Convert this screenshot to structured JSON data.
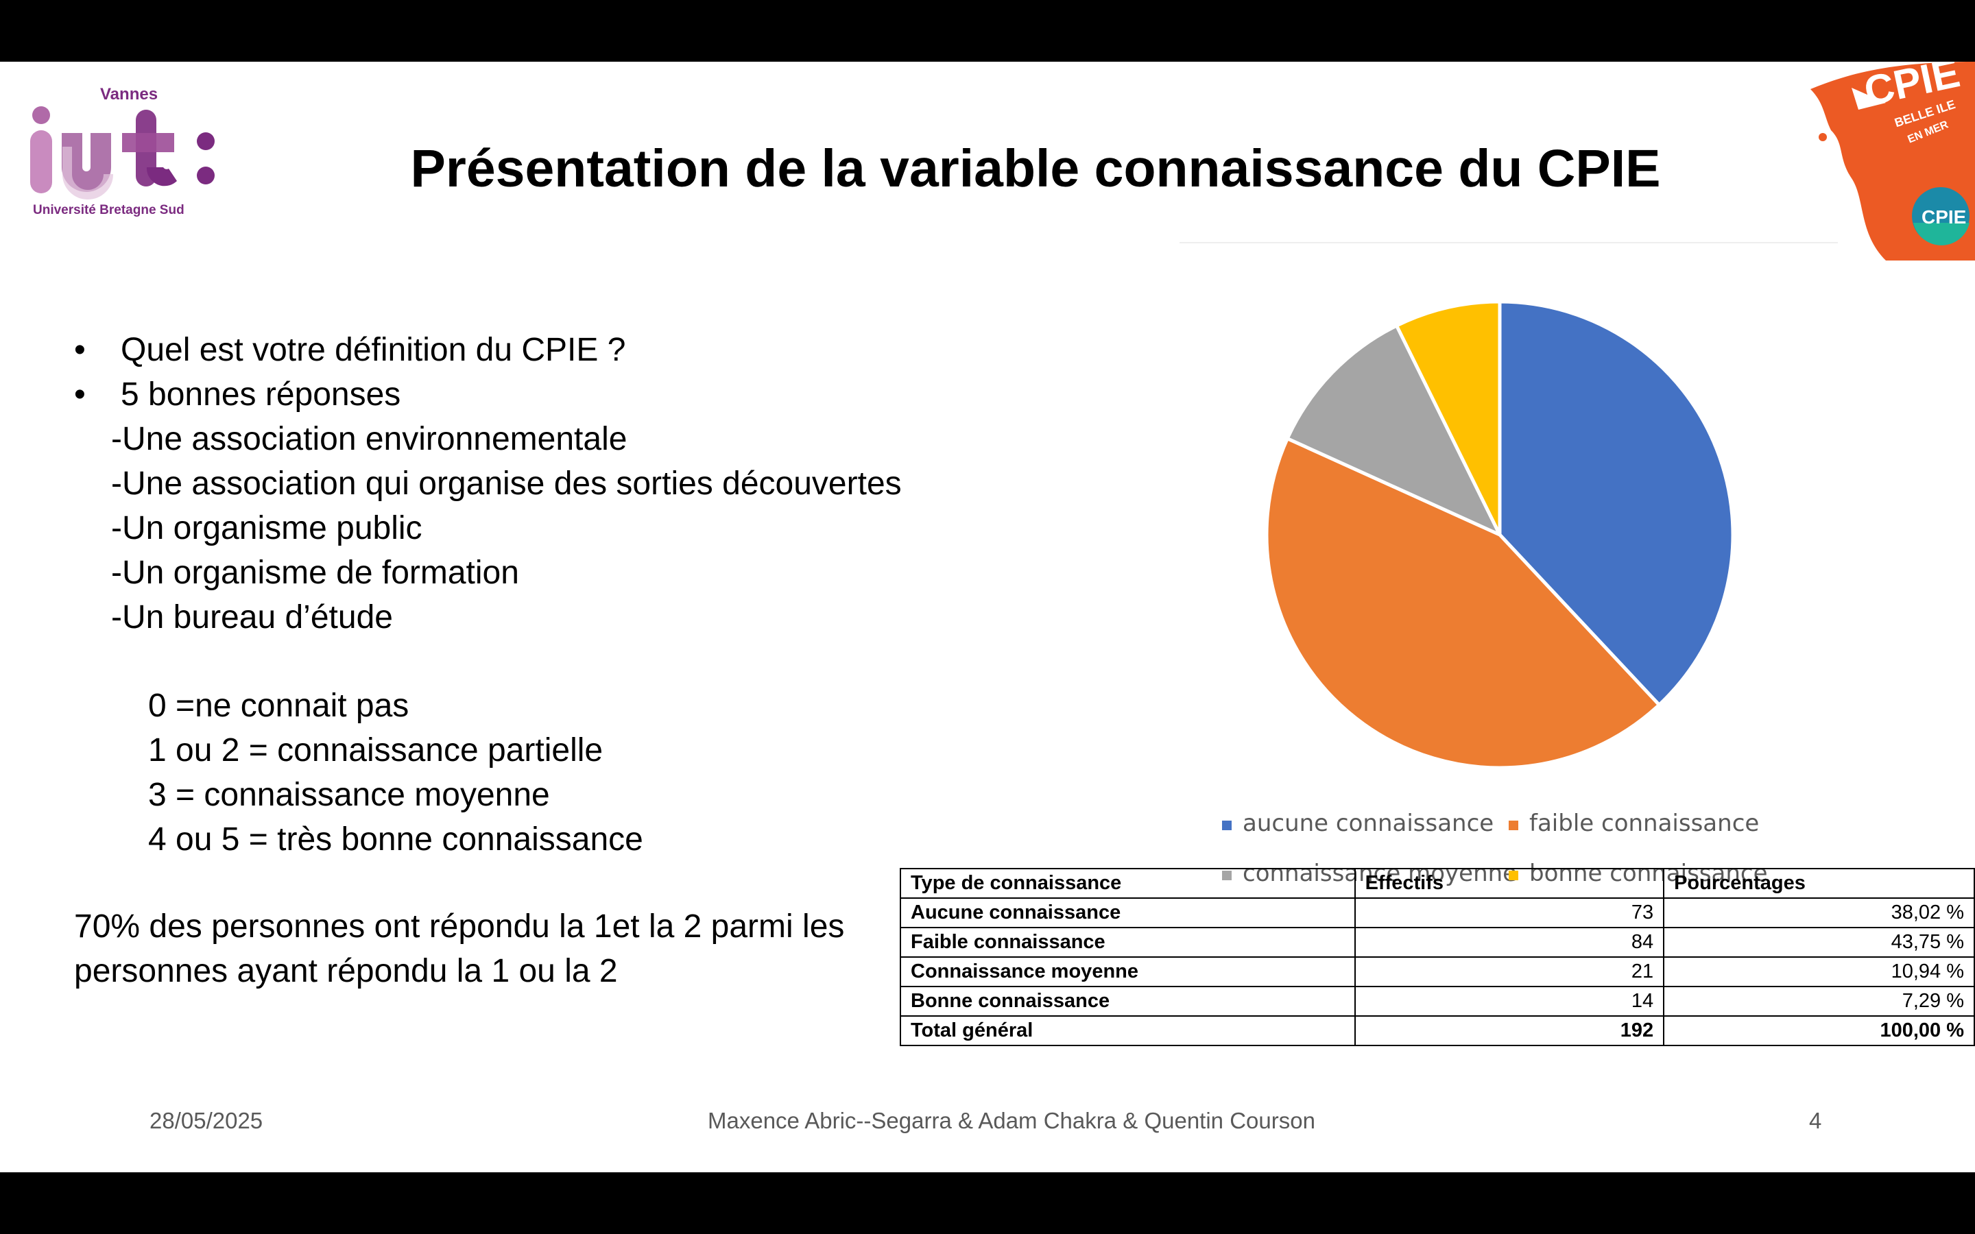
{
  "logos": {
    "iut": {
      "top_text": "Vannes",
      "bottom_text": "Université Bretagne Sud",
      "mark": "iut:"
    },
    "cpie": {
      "line1": "CPIE",
      "line2": "BELLE ILE",
      "line3": "EN MER"
    }
  },
  "title": "Présentation de la variable connaissance du CPIE",
  "bullets": [
    "Quel est votre définition du CPIE ?",
    "5 bonnes réponses"
  ],
  "answers": [
    "-Une association environnementale",
    "-Une association qui organise des sorties découvertes",
    "-Un organisme public",
    "-Un organisme de formation",
    "-Un bureau d’étude"
  ],
  "scale": [
    "0 =ne connait pas",
    "1 ou 2 = connaissance partielle",
    "3 = connaissance moyenne",
    "4 ou 5 = très bonne connaissance"
  ],
  "conclusion": [
    "70% des personnes ont répondu la 1et la 2 parmi les",
    "personnes ayant répondu la 1 ou la 2"
  ],
  "chart_data": {
    "type": "pie",
    "categories": [
      "aucune connaissance",
      "faible connaissance",
      "connaissance moyenne",
      "bonne connaissance"
    ],
    "values": [
      73,
      84,
      21,
      14
    ],
    "colors": [
      "#4472c4",
      "#ed7d31",
      "#a5a5a5",
      "#ffc000"
    ],
    "legend_position": "bottom"
  },
  "table": {
    "headers": [
      "Type de connaissance",
      "Effectifs",
      "Pourcentages"
    ],
    "rows": [
      [
        "Aucune connaissance",
        "73",
        "38,02 %"
      ],
      [
        "Faible connaissance",
        "84",
        "43,75 %"
      ],
      [
        "Connaissance moyenne",
        "21",
        "10,94 %"
      ],
      [
        "Bonne connaissance",
        "14",
        "7,29 %"
      ]
    ],
    "total": [
      "Total général",
      "192",
      "100,00 %"
    ]
  },
  "footer": {
    "date": "28/05/2025",
    "authors": "Maxence Abric--Segarra & Adam Chakra & Quentin Courson",
    "page": "4"
  }
}
